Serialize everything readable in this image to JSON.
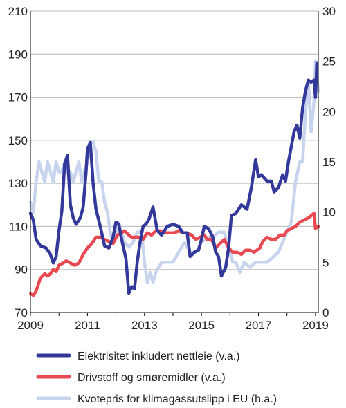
{
  "chart_data": {
    "type": "line",
    "title": "",
    "xlabel": "",
    "ylabel_left": "",
    "ylabel_right": "",
    "xlim": [
      2009.0,
      2019.1
    ],
    "ylim_left": [
      70,
      210
    ],
    "ylim_right": [
      0,
      30
    ],
    "x_ticks": [
      2009,
      2011,
      2013,
      2015,
      2017,
      2019
    ],
    "x_tick_labels": [
      "2009",
      "2011",
      "2013",
      "2015",
      "2017",
      "2019"
    ],
    "y_left_ticks": [
      70,
      90,
      110,
      130,
      150,
      170,
      190,
      210
    ],
    "y_left_tick_labels": [
      "70",
      "90",
      "110",
      "130",
      "150",
      "170",
      "190",
      "210"
    ],
    "y_right_ticks": [
      0,
      5,
      10,
      15,
      20,
      25,
      30
    ],
    "y_right_tick_labels": [
      "0",
      "5",
      "10",
      "15",
      "20",
      "25",
      "30"
    ],
    "grid": true,
    "legend_position": "bottom",
    "series": [
      {
        "name": "Elektrisitet inkludert nettleie (v.a.)",
        "axis": "left",
        "color": "#33399a",
        "x": [
          2009.0,
          2009.1,
          2009.2,
          2009.35,
          2009.55,
          2009.7,
          2009.8,
          2009.9,
          2010.0,
          2010.1,
          2010.2,
          2010.3,
          2010.4,
          2010.5,
          2010.6,
          2010.75,
          2010.85,
          2010.95,
          2011.0,
          2011.1,
          2011.2,
          2011.3,
          2011.45,
          2011.6,
          2011.75,
          2011.9,
          2012.0,
          2012.1,
          2012.2,
          2012.35,
          2012.45,
          2012.55,
          2012.65,
          2012.75,
          2012.85,
          2012.95,
          2013.05,
          2013.15,
          2013.3,
          2013.45,
          2013.6,
          2013.8,
          2014.0,
          2014.2,
          2014.35,
          2014.5,
          2014.6,
          2014.75,
          2014.9,
          2015.0,
          2015.1,
          2015.25,
          2015.4,
          2015.5,
          2015.6,
          2015.7,
          2015.85,
          2015.95,
          2016.05,
          2016.2,
          2016.4,
          2016.6,
          2016.75,
          2016.9,
          2017.0,
          2017.1,
          2017.3,
          2017.45,
          2017.55,
          2017.7,
          2017.85,
          2017.95,
          2018.05,
          2018.15,
          2018.25,
          2018.35,
          2018.45,
          2018.55,
          2018.65,
          2018.75,
          2018.85,
          2018.95,
          2019.0,
          2019.05
        ],
        "values": [
          116,
          113,
          104,
          101,
          100,
          97,
          93,
          96,
          108,
          117,
          139,
          143,
          120,
          114,
          111,
          114,
          119,
          135,
          146,
          149,
          130,
          118,
          110,
          101,
          100,
          105,
          112,
          111,
          104,
          95,
          79,
          82,
          81,
          94,
          103,
          110,
          111,
          113,
          119,
          108,
          106,
          110,
          111,
          110,
          107,
          107,
          96,
          98,
          99,
          104,
          110,
          109,
          105,
          98,
          96,
          87,
          91,
          100,
          115,
          116,
          120,
          118,
          128,
          141,
          133,
          134,
          131,
          131,
          126,
          128,
          134,
          131,
          140,
          147,
          154,
          157,
          151,
          165,
          173,
          178,
          177,
          178,
          170,
          186
        ]
      },
      {
        "name": "Drivstoff og smøremidler (v.a.)",
        "axis": "left",
        "color": "#e8484f",
        "x": [
          2009.0,
          2009.1,
          2009.2,
          2009.35,
          2009.5,
          2009.6,
          2009.7,
          2009.8,
          2009.9,
          2010.0,
          2010.15,
          2010.25,
          2010.4,
          2010.55,
          2010.7,
          2010.85,
          2011.0,
          2011.15,
          2011.3,
          2011.45,
          2011.6,
          2011.75,
          2011.9,
          2012.05,
          2012.2,
          2012.3,
          2012.45,
          2012.55,
          2012.65,
          2012.8,
          2012.95,
          2013.1,
          2013.25,
          2013.4,
          2013.55,
          2013.7,
          2013.9,
          2014.05,
          2014.2,
          2014.35,
          2014.5,
          2014.65,
          2014.8,
          2014.95,
          2015.1,
          2015.2,
          2015.35,
          2015.5,
          2015.65,
          2015.8,
          2015.95,
          2016.1,
          2016.25,
          2016.4,
          2016.55,
          2016.7,
          2016.85,
          2016.95,
          2017.05,
          2017.15,
          2017.3,
          2017.45,
          2017.6,
          2017.75,
          2017.9,
          2018.0,
          2018.15,
          2018.3,
          2018.45,
          2018.6,
          2018.75,
          2018.85,
          2018.95,
          2019.0,
          2019.1
        ],
        "values": [
          79,
          78,
          80,
          86,
          88,
          87,
          88,
          90,
          89,
          92,
          93,
          94,
          93,
          92,
          93,
          97,
          100,
          102,
          105,
          105,
          104,
          103,
          102,
          106,
          107,
          108,
          106,
          105,
          105,
          105,
          104,
          107,
          106,
          108,
          108,
          107,
          107,
          107,
          108,
          107,
          107,
          106,
          104,
          105,
          106,
          104,
          104,
          100,
          102,
          104,
          100,
          98,
          98,
          97,
          99,
          99,
          98,
          99,
          100,
          103,
          105,
          104,
          104,
          106,
          106,
          108,
          109,
          110,
          112,
          113,
          114,
          115,
          116,
          109,
          110
        ]
      },
      {
        "name": "Kvotepris for klimagassutslipp i EU (h.a.)",
        "axis": "right",
        "color": "#c8d4ee",
        "x": [
          2009.0,
          2009.1,
          2009.2,
          2009.3,
          2009.4,
          2009.5,
          2009.6,
          2009.7,
          2009.8,
          2009.9,
          2010.0,
          2010.1,
          2010.2,
          2010.3,
          2010.4,
          2010.5,
          2010.6,
          2010.7,
          2010.8,
          2010.9,
          2011.0,
          2011.1,
          2011.2,
          2011.3,
          2011.4,
          2011.5,
          2011.6,
          2011.7,
          2011.8,
          2011.9,
          2012.0,
          2012.1,
          2012.2,
          2012.3,
          2012.45,
          2012.6,
          2012.75,
          2012.9,
          2013.0,
          2013.1,
          2013.2,
          2013.3,
          2013.4,
          2013.6,
          2013.8,
          2014.0,
          2014.2,
          2014.4,
          2014.6,
          2014.8,
          2015.0,
          2015.2,
          2015.4,
          2015.6,
          2015.8,
          2016.0,
          2016.1,
          2016.2,
          2016.35,
          2016.5,
          2016.7,
          2016.9,
          2017.1,
          2017.3,
          2017.5,
          2017.7,
          2017.85,
          2018.0,
          2018.15,
          2018.3,
          2018.45,
          2018.55,
          2018.65,
          2018.75,
          2018.85,
          2018.95,
          2019.0,
          2019.1
        ],
        "values": [
          11,
          10,
          13,
          15,
          14,
          13,
          15,
          14,
          13,
          15,
          14,
          14,
          15,
          14,
          14,
          13,
          14,
          15,
          13,
          14,
          15,
          17,
          17,
          16,
          13,
          13,
          11,
          10,
          8,
          7,
          8,
          9,
          8,
          7,
          6.5,
          7,
          8,
          8,
          5,
          3,
          4,
          3,
          4,
          5,
          5,
          5,
          6,
          7,
          6,
          6,
          7,
          7.5,
          7.5,
          8,
          8,
          6,
          5,
          5,
          4,
          5,
          4.5,
          5,
          5,
          5,
          5.5,
          6,
          7,
          8,
          9,
          13,
          15,
          15,
          20,
          23,
          18,
          21,
          25,
          22
        ]
      }
    ]
  }
}
